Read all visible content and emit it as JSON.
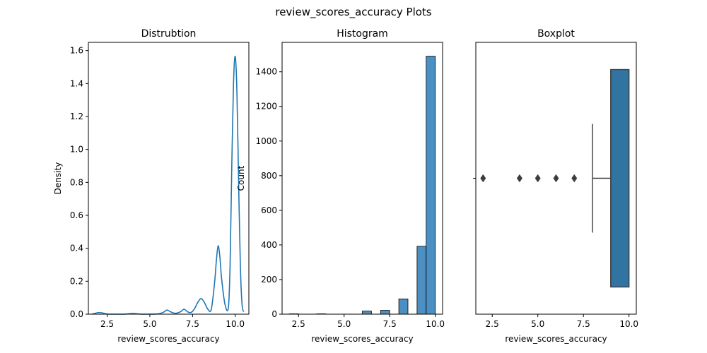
{
  "figure": {
    "title": "review_scores_accuracy Plots"
  },
  "chart_data": [
    {
      "type": "line",
      "title": "Distrubtion",
      "xlabel": "review_scores_accuracy",
      "ylabel": "Density",
      "xlim": [
        1.4,
        10.8
      ],
      "ylim": [
        0,
        1.65
      ],
      "xticks": [
        2.5,
        5.0,
        7.5,
        10.0
      ],
      "xtick_labels": [
        "2.5",
        "5.0",
        "7.5",
        "10.0"
      ],
      "yticks": [
        0.0,
        0.2,
        0.4,
        0.6,
        0.8,
        1.0,
        1.2,
        1.4,
        1.6
      ],
      "ytick_labels": [
        "0.0",
        "0.2",
        "0.4",
        "0.6",
        "0.8",
        "1.0",
        "1.2",
        "1.4",
        "1.6"
      ],
      "color": "#1f77b4",
      "x": [
        1.6,
        1.8,
        2.0,
        2.2,
        2.4,
        2.6,
        3.0,
        3.5,
        4.0,
        4.5,
        5.0,
        5.5,
        5.8,
        6.0,
        6.2,
        6.5,
        6.8,
        7.0,
        7.2,
        7.4,
        7.6,
        7.8,
        8.0,
        8.2,
        8.4,
        8.6,
        8.8,
        8.9,
        9.0,
        9.1,
        9.2,
        9.4,
        9.6,
        9.7,
        9.8,
        9.9,
        10.0,
        10.1,
        10.2,
        10.3,
        10.4,
        10.5
      ],
      "y": [
        0.0,
        0.005,
        0.01,
        0.008,
        0.003,
        0.0,
        0.0,
        0.0,
        0.004,
        0.0,
        0.0,
        0.002,
        0.012,
        0.025,
        0.015,
        0.005,
        0.015,
        0.03,
        0.015,
        0.01,
        0.03,
        0.07,
        0.095,
        0.07,
        0.03,
        0.03,
        0.2,
        0.33,
        0.415,
        0.35,
        0.22,
        0.06,
        0.04,
        0.3,
        0.9,
        1.4,
        1.565,
        1.35,
        0.8,
        0.3,
        0.06,
        0.015
      ]
    },
    {
      "type": "bar",
      "title": "Histogram",
      "xlabel": "review_scores_accuracy",
      "ylabel": "Count",
      "xlim": [
        1.6,
        10.4
      ],
      "ylim": [
        0,
        1570
      ],
      "xticks": [
        2.5,
        5.0,
        7.5,
        10.0
      ],
      "xtick_labels": [
        "2.5",
        "5.0",
        "7.5",
        "10.0"
      ],
      "yticks": [
        0,
        200,
        400,
        600,
        800,
        1000,
        1200,
        1400
      ],
      "ytick_labels": [
        "0",
        "200",
        "400",
        "600",
        "800",
        "1000",
        "1200",
        "1400"
      ],
      "color": "#4c8fc3",
      "bins": [
        {
          "start": 2.0,
          "end": 2.5,
          "value": 2
        },
        {
          "start": 3.5,
          "end": 4.0,
          "value": 2
        },
        {
          "start": 6.0,
          "end": 6.5,
          "value": 18
        },
        {
          "start": 7.0,
          "end": 7.5,
          "value": 22
        },
        {
          "start": 8.0,
          "end": 8.5,
          "value": 88
        },
        {
          "start": 9.0,
          "end": 9.5,
          "value": 392
        },
        {
          "start": 9.5,
          "end": 10.0,
          "value": 1490
        }
      ]
    },
    {
      "type": "box",
      "title": "Boxplot",
      "xlabel": "review_scores_accuracy",
      "xlim": [
        1.6,
        10.4
      ],
      "xticks": [
        2.5,
        5.0,
        7.5,
        10.0
      ],
      "xtick_labels": [
        "2.5",
        "5.0",
        "7.5",
        "10.0"
      ],
      "color": "#3274a1",
      "stats": {
        "whisker_low": 8.0,
        "q1": 9.0,
        "median": 9.0,
        "q3": 10.0,
        "whisker_high": 10.0
      },
      "outliers": [
        2.0,
        4.0,
        5.0,
        6.0,
        7.0
      ]
    }
  ]
}
